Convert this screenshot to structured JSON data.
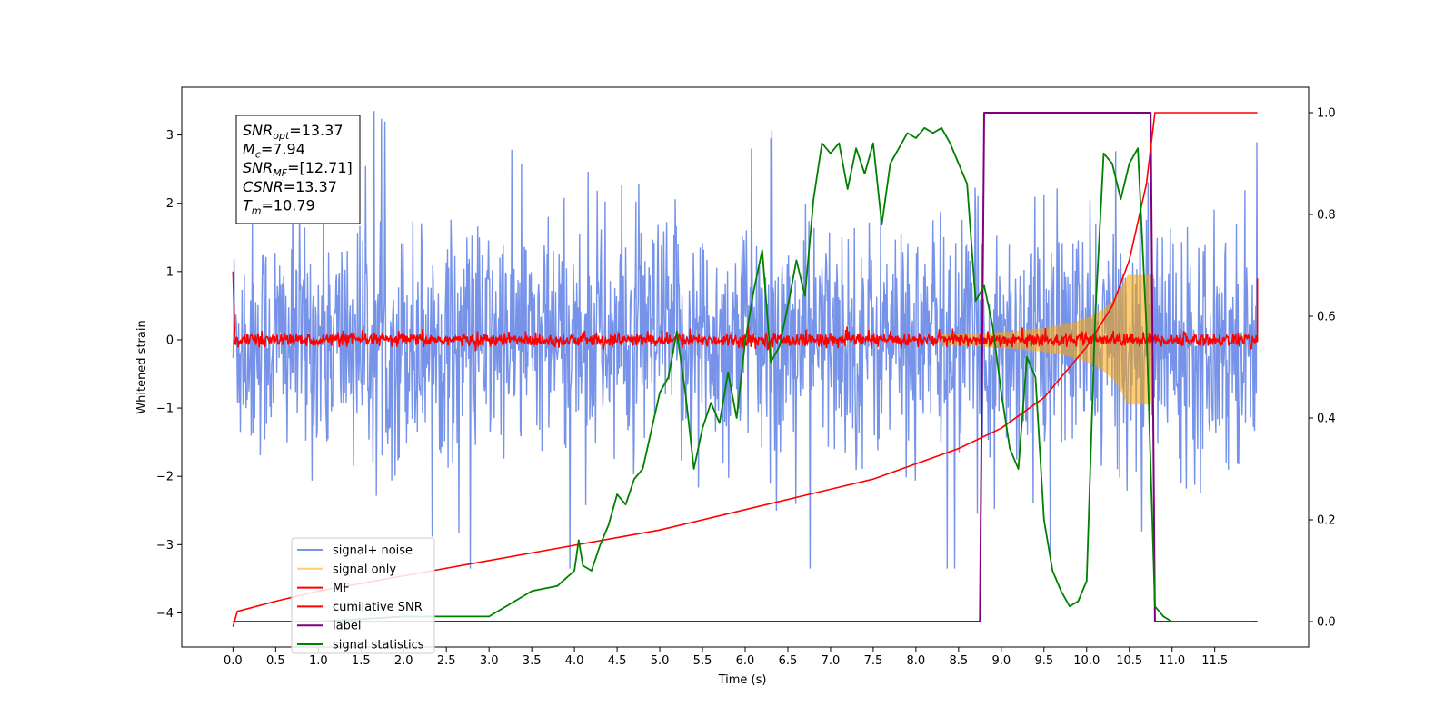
{
  "chart_data": {
    "type": "line",
    "xlabel": "Time (s)",
    "ylabel": "Whitened strain",
    "xlim": [
      -0.6,
      12.6
    ],
    "ylim": [
      -4.5,
      3.7
    ],
    "y2lim": [
      -0.05,
      1.05
    ],
    "x_ticks": [
      "0.0",
      "0.5",
      "1.0",
      "1.5",
      "2.0",
      "2.5",
      "3.0",
      "3.5",
      "4.0",
      "4.5",
      "5.0",
      "5.5",
      "6.0",
      "6.5",
      "7.0",
      "7.5",
      "8.0",
      "8.5",
      "9.0",
      "9.5",
      "10.0",
      "10.5",
      "11.0",
      "11.5"
    ],
    "y_ticks": [
      "3",
      "2",
      "1",
      "0",
      "−1",
      "−2",
      "−3",
      "−4"
    ],
    "y2_ticks": [
      "0.0",
      "0.2",
      "0.4",
      "0.6",
      "0.8",
      "1.0"
    ],
    "legend_position": "lower-left",
    "annotation": {
      "lines": [
        {
          "name": "SNR",
          "sub": "opt",
          "value": "=13.37"
        },
        {
          "name": "M",
          "sub": "c",
          "value": "=7.94"
        },
        {
          "name": "SNR",
          "sub": "MF",
          "value": "=[12.71]"
        },
        {
          "name": "CSNR",
          "sub": "",
          "value": "=13.37"
        },
        {
          "name": "T",
          "sub": "m",
          "value": "=10.79"
        }
      ]
    },
    "series": [
      {
        "name": "signal+ noise",
        "color": "#4169E1",
        "axis": "left",
        "note": "noise band roughly ±1.8 with spikes to ±3.3, 0 to 12 s"
      },
      {
        "name": "signal only",
        "color": "#FFA500",
        "axis": "left",
        "note": "chirp envelope growing from ~8.5 s to ~0.9 at 10.8 s"
      },
      {
        "name": "MF",
        "color": "#FF0000",
        "axis": "left",
        "note": "filter output near 0 with noise ±0.1, spike 1.0 at 0.0"
      },
      {
        "name": "cumilative SNR",
        "color": "#FF0000",
        "axis": "right",
        "x": [
          0.0,
          0.05,
          0.5,
          1.0,
          2.0,
          3.0,
          4.0,
          5.0,
          6.0,
          7.0,
          7.5,
          8.0,
          8.5,
          9.0,
          9.5,
          10.0,
          10.3,
          10.5,
          10.7,
          10.8,
          11.0,
          12.0
        ],
        "values": [
          -0.01,
          0.02,
          0.04,
          0.06,
          0.09,
          0.12,
          0.15,
          0.18,
          0.22,
          0.26,
          0.28,
          0.31,
          0.34,
          0.38,
          0.44,
          0.54,
          0.62,
          0.71,
          0.86,
          1.0,
          1.0,
          1.0
        ]
      },
      {
        "name": "label",
        "color": "#800080",
        "axis": "right",
        "x": [
          0.0,
          8.75,
          8.8,
          10.75,
          10.8,
          12.0
        ],
        "values": [
          0.0,
          0.0,
          1.0,
          1.0,
          0.0,
          0.0
        ]
      },
      {
        "name": "signal statistics",
        "color": "#008000",
        "axis": "right",
        "x": [
          0.0,
          1.0,
          2.0,
          3.0,
          3.5,
          3.8,
          4.0,
          4.05,
          4.1,
          4.2,
          4.3,
          4.4,
          4.5,
          4.6,
          4.7,
          4.8,
          5.0,
          5.1,
          5.2,
          5.3,
          5.4,
          5.5,
          5.6,
          5.7,
          5.8,
          5.9,
          6.0,
          6.1,
          6.2,
          6.3,
          6.4,
          6.5,
          6.6,
          6.7,
          6.8,
          6.9,
          7.0,
          7.1,
          7.2,
          7.3,
          7.4,
          7.5,
          7.6,
          7.7,
          7.8,
          7.9,
          8.0,
          8.1,
          8.2,
          8.3,
          8.4,
          8.6,
          8.7,
          8.8,
          8.9,
          9.0,
          9.1,
          9.2,
          9.3,
          9.4,
          9.5,
          9.6,
          9.7,
          9.8,
          9.9,
          10.0,
          10.1,
          10.2,
          10.3,
          10.4,
          10.5,
          10.6,
          10.7,
          10.8,
          10.9,
          11.0,
          11.5,
          11.95
        ],
        "values": [
          0.0,
          0.0,
          0.01,
          0.01,
          0.06,
          0.07,
          0.1,
          0.16,
          0.11,
          0.1,
          0.15,
          0.19,
          0.25,
          0.23,
          0.28,
          0.3,
          0.45,
          0.48,
          0.57,
          0.45,
          0.3,
          0.38,
          0.43,
          0.39,
          0.49,
          0.4,
          0.55,
          0.65,
          0.73,
          0.51,
          0.54,
          0.62,
          0.71,
          0.64,
          0.83,
          0.94,
          0.92,
          0.94,
          0.85,
          0.93,
          0.88,
          0.94,
          0.78,
          0.9,
          0.93,
          0.96,
          0.95,
          0.97,
          0.96,
          0.97,
          0.94,
          0.86,
          0.63,
          0.66,
          0.58,
          0.45,
          0.34,
          0.3,
          0.52,
          0.48,
          0.2,
          0.1,
          0.06,
          0.03,
          0.04,
          0.08,
          0.6,
          0.92,
          0.9,
          0.83,
          0.9,
          0.93,
          0.58,
          0.03,
          0.01,
          0.0,
          0.0,
          0.0
        ]
      }
    ]
  }
}
